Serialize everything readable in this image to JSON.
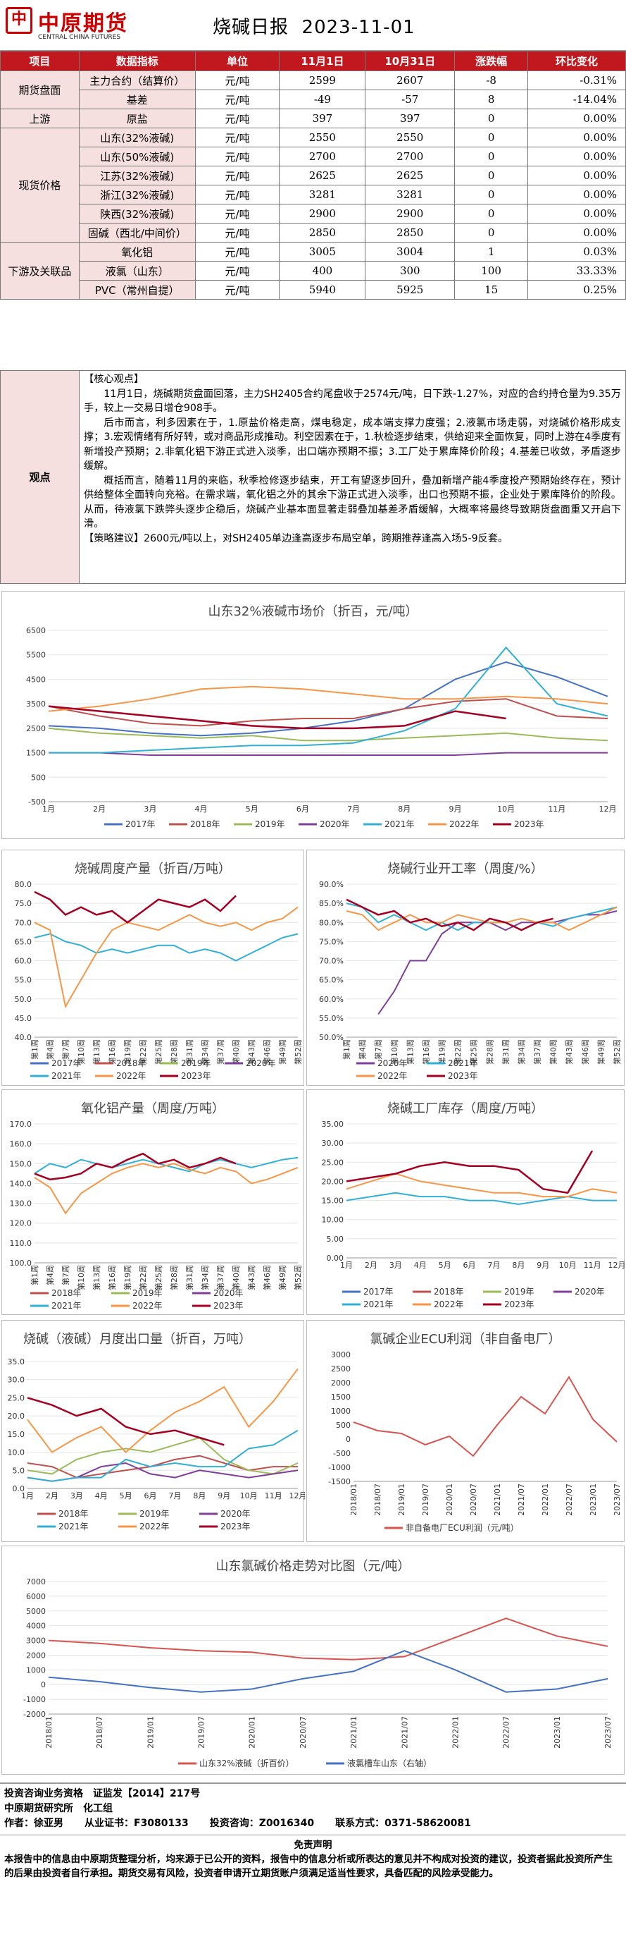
{
  "header": {
    "logo_cn": "中原期货",
    "logo_en": "CENTRAL CHINA FUTURES",
    "title": "烧碱日报",
    "date": "2023-11-01"
  },
  "table": {
    "headers": [
      "项目",
      "数据指标",
      "单位",
      "11月1日",
      "10月31日",
      "涨跌幅",
      "环比变化"
    ],
    "rows": [
      {
        "cat": "期货盘面",
        "ind": "主力合约（结算价）",
        "unit": "元/吨",
        "d1": "2599",
        "d0": "2607",
        "chg": "-8",
        "pct": "-0.31%"
      },
      {
        "cat": "",
        "ind": "基差",
        "unit": "元/吨",
        "d1": "-49",
        "d0": "-57",
        "chg": "8",
        "pct": "-14.04%"
      },
      {
        "cat": "上游",
        "ind": "原盐",
        "unit": "元/吨",
        "d1": "397",
        "d0": "397",
        "chg": "0",
        "pct": "0.00%"
      },
      {
        "cat": "现货价格",
        "ind": "山东(32%液碱)",
        "unit": "元/吨",
        "d1": "2550",
        "d0": "2550",
        "chg": "0",
        "pct": "0.00%"
      },
      {
        "cat": "",
        "ind": "山东(50%液碱)",
        "unit": "元/吨",
        "d1": "2700",
        "d0": "2700",
        "chg": "0",
        "pct": "0.00%"
      },
      {
        "cat": "",
        "ind": "江苏(32%液碱)",
        "unit": "元/吨",
        "d1": "2625",
        "d0": "2625",
        "chg": "0",
        "pct": "0.00%"
      },
      {
        "cat": "",
        "ind": "浙江(32%液碱)",
        "unit": "元/吨",
        "d1": "3281",
        "d0": "3281",
        "chg": "0",
        "pct": "0.00%"
      },
      {
        "cat": "",
        "ind": "陕西(32%液碱)",
        "unit": "元/吨",
        "d1": "2900",
        "d0": "2900",
        "chg": "0",
        "pct": "0.00%"
      },
      {
        "cat": "",
        "ind": "固碱（西北/中间价）",
        "unit": "元/吨",
        "d1": "2850",
        "d0": "2850",
        "chg": "0",
        "pct": "0.00%"
      },
      {
        "cat": "下游及关联品",
        "ind": "氧化铝",
        "unit": "元/吨",
        "d1": "3005",
        "d0": "3004",
        "chg": "1",
        "pct": "0.03%"
      },
      {
        "cat": "",
        "ind": "液氯（山东）",
        "unit": "元/吨",
        "d1": "400",
        "d0": "300",
        "chg": "100",
        "pct": "33.33%"
      },
      {
        "cat": "",
        "ind": "PVC（常州自提）",
        "unit": "元/吨",
        "d1": "5940",
        "d0": "5925",
        "chg": "15",
        "pct": "0.25%"
      }
    ]
  },
  "view": {
    "label": "观点",
    "head": "【核心观点】",
    "p1": "11月1日，烧碱期货盘面回落，主力SH2405合约尾盘收于2574元/吨，日下跌-1.27%，对应的合约持仓量为9.35万手，较上一交易日增仓908手。",
    "p2": "后市而言，利多因素在于，1.原盐价格走高，煤电稳定，成本端支撑力度强；2.液氯市场走弱，对烧碱价格形成支撑；3.宏观情绪有所好转，或对商品形成推动。利空因素在于，1.秋检逐步结束，供给迎来全面恢复，同时上游在4季度有新增投产预期；2.非氧化铝下游正式进入淡季，出口端亦预期不振；3.工厂处于累库降价阶段；4.基差已收敛，矛盾逐步缓解。",
    "p3": "概括而言，随着11月的来临，秋季检修逐步结束，开工有望逐步回升，叠加新增产能4季度投产预期始终存在，预计供给整体全面转向充裕。在需求端，氧化铝之外的其余下游正式进入淡季，出口也预期不振，企业处于累库降价的阶段。从而，待液氯下跌弊头逐步企稳后，烧碱产业基本面显著走弱叠加基差矛盾缓解，大概率将最终导致期货盘面重又开启下滑。",
    "p4": "【策略建议】2600元/吨以上，对SH2405单边逢高逐步布局空单，跨期推荐逢高入场5-9反套。"
  },
  "colors": {
    "red": "#c0181e",
    "pink": "#f6e0df",
    "y2017": "#4472c4",
    "y2018": "#c0504d",
    "y2019": "#9bbb59",
    "y2020": "#7f3f98",
    "y2021": "#31b0d5",
    "y2022": "#f79646",
    "y2023": "#a50021"
  },
  "chart_data": [
    {
      "type": "line",
      "title": "山东32%液碱市场价（折百，元/吨）",
      "x": [
        "1月",
        "2月",
        "3月",
        "4月",
        "5月",
        "6月",
        "7月",
        "8月",
        "9月",
        "10月",
        "11月",
        "12月"
      ],
      "ylim": [
        -500,
        6500
      ],
      "yticks": [
        "6500",
        "5500",
        "4500",
        "3500",
        "2500",
        "1500",
        "500",
        "-500"
      ],
      "series": [
        {
          "name": "2017年",
          "values": [
            2600,
            2500,
            2300,
            2200,
            2300,
            2500,
            2800,
            3300,
            4500,
            5200,
            4600,
            3800
          ]
        },
        {
          "name": "2018年",
          "values": [
            3400,
            3000,
            2700,
            2600,
            2800,
            2900,
            2900,
            3300,
            3600,
            3700,
            3000,
            2900
          ]
        },
        {
          "name": "2019年",
          "values": [
            2500,
            2300,
            2200,
            2100,
            2200,
            2000,
            2000,
            2100,
            2200,
            2300,
            2100,
            2000
          ]
        },
        {
          "name": "2020年",
          "values": [
            1500,
            1500,
            1400,
            1400,
            1400,
            1400,
            1400,
            1400,
            1400,
            1500,
            1500,
            1500
          ]
        },
        {
          "name": "2021年",
          "values": [
            1500,
            1500,
            1600,
            1700,
            1800,
            1800,
            1900,
            2400,
            3300,
            5800,
            3500,
            3000
          ]
        },
        {
          "name": "2022年",
          "values": [
            3200,
            3400,
            3700,
            4100,
            4200,
            4100,
            3900,
            3700,
            3700,
            3800,
            3700,
            3500
          ]
        },
        {
          "name": "2023年",
          "values": [
            3400,
            3200,
            3000,
            2800,
            2600,
            2500,
            2500,
            2600,
            3200,
            2900,
            null,
            null
          ]
        }
      ]
    },
    {
      "type": "line",
      "title": "烧碱周度产量（折百/万吨）",
      "x": [
        "第1周",
        "第4周",
        "第7周",
        "第10周",
        "第13周",
        "第16周",
        "第19周",
        "第22周",
        "第25周",
        "第28周",
        "第31周",
        "第34周",
        "第37周",
        "第40周",
        "第43周",
        "第46周",
        "第49周",
        "第52周"
      ],
      "ylim": [
        40,
        80
      ],
      "yticks": [
        "80.0",
        "75.0",
        "70.0",
        "65.0",
        "60.0",
        "55.0",
        "50.0",
        "45.0",
        "40.0"
      ],
      "series": [
        {
          "name": "2017年",
          "values": []
        },
        {
          "name": "2018年",
          "values": []
        },
        {
          "name": "2019年",
          "values": []
        },
        {
          "name": "2020年",
          "values": []
        },
        {
          "name": "2021年",
          "values": [
            66,
            67,
            65,
            64,
            62,
            63,
            62,
            63,
            64,
            64,
            62,
            63,
            62,
            60,
            62,
            64,
            66,
            67
          ]
        },
        {
          "name": "2022年",
          "values": [
            70,
            68,
            48,
            55,
            62,
            68,
            70,
            69,
            68,
            70,
            72,
            70,
            69,
            70,
            68,
            70,
            71,
            74
          ]
        },
        {
          "name": "2023年",
          "values": [
            78,
            76,
            72,
            74,
            72,
            73,
            70,
            73,
            76,
            75,
            74,
            76,
            73,
            77,
            null,
            null,
            null,
            null
          ]
        }
      ]
    },
    {
      "type": "line",
      "title": "烧碱行业开工率（周度/%）",
      "x": [
        "第1周",
        "第4周",
        "第7周",
        "第10周",
        "第13周",
        "第16周",
        "第19周",
        "第22周",
        "第25周",
        "第28周",
        "第31周",
        "第34周",
        "第37周",
        "第40周",
        "第43周",
        "第46周",
        "第49周",
        "第52周"
      ],
      "ylim": [
        50,
        90
      ],
      "yticks": [
        "90.0%",
        "85.0%",
        "80.0%",
        "75.0%",
        "70.0%",
        "65.0%",
        "60.0%",
        "55.0%",
        "50.0%"
      ],
      "series": [
        {
          "name": "2020年",
          "values": [
            null,
            null,
            56,
            62,
            70,
            70,
            77,
            80,
            80,
            80,
            78,
            80,
            80,
            80,
            81,
            82,
            82,
            83
          ]
        },
        {
          "name": "2021年",
          "values": [
            85,
            84,
            80,
            82,
            80,
            78,
            80,
            78,
            80,
            80,
            80,
            78,
            80,
            79,
            81,
            82,
            83,
            84
          ]
        },
        {
          "name": "2022年",
          "values": [
            83,
            82,
            78,
            80,
            82,
            80,
            80,
            82,
            81,
            80,
            80,
            81,
            80,
            80,
            78,
            80,
            82,
            84
          ]
        },
        {
          "name": "2023年",
          "values": [
            86,
            84,
            82,
            83,
            80,
            81,
            79,
            80,
            78,
            81,
            80,
            78,
            80,
            81,
            null,
            null,
            null,
            null
          ]
        }
      ]
    },
    {
      "type": "line",
      "title": "氧化铝产量（周度/万吨）",
      "x": [
        "第1周",
        "第4周",
        "第7周",
        "第10周",
        "第13周",
        "第16周",
        "第19周",
        "第22周",
        "第25周",
        "第28周",
        "第31周",
        "第34周",
        "第37周",
        "第40周",
        "第43周",
        "第46周",
        "第49周",
        "第52周"
      ],
      "ylim": [
        100,
        170
      ],
      "yticks": [
        "170.0",
        "160.0",
        "150.0",
        "140.0",
        "130.0",
        "120.0",
        "110.0",
        "100.0"
      ],
      "series": [
        {
          "name": "2018年",
          "values": []
        },
        {
          "name": "2019年",
          "values": []
        },
        {
          "name": "2020年",
          "values": []
        },
        {
          "name": "2021年",
          "values": [
            145,
            150,
            148,
            152,
            150,
            148,
            150,
            152,
            150,
            148,
            146,
            150,
            152,
            150,
            148,
            150,
            152,
            153
          ]
        },
        {
          "name": "2022年",
          "values": [
            143,
            138,
            125,
            135,
            140,
            145,
            148,
            150,
            148,
            150,
            147,
            145,
            148,
            146,
            140,
            142,
            145,
            148
          ]
        },
        {
          "name": "2023年",
          "values": [
            145,
            142,
            143,
            145,
            150,
            148,
            152,
            155,
            150,
            152,
            148,
            150,
            153,
            150,
            null,
            null,
            null,
            null
          ]
        }
      ]
    },
    {
      "type": "line",
      "title": "烧碱工厂库存（周度/万吨）",
      "x": [
        "1月",
        "2月",
        "3月",
        "4月",
        "5月",
        "6月",
        "7月",
        "8月",
        "9月",
        "10月",
        "11月",
        "12月"
      ],
      "ylim": [
        0,
        35
      ],
      "yticks": [
        "35.00",
        "30.00",
        "25.00",
        "20.00",
        "15.00",
        "10.00",
        "5.00",
        "0.00"
      ],
      "series": [
        {
          "name": "2017年",
          "values": []
        },
        {
          "name": "2018年",
          "values": []
        },
        {
          "name": "2019年",
          "values": []
        },
        {
          "name": "2020年",
          "values": []
        },
        {
          "name": "2021年",
          "values": [
            15,
            16,
            17,
            16,
            16,
            15,
            15,
            14,
            15,
            16,
            15,
            15
          ]
        },
        {
          "name": "2022年",
          "values": [
            18,
            20,
            22,
            20,
            19,
            18,
            17,
            17,
            16,
            16,
            18,
            17
          ]
        },
        {
          "name": "2023年",
          "values": [
            20,
            21,
            22,
            24,
            25,
            24,
            24,
            23,
            18,
            17,
            28,
            null
          ]
        }
      ]
    },
    {
      "type": "line",
      "title": "烧碱（液碱）月度出口量（折百，万吨）",
      "x": [
        "1月",
        "2月",
        "3月",
        "4月",
        "5月",
        "6月",
        "7月",
        "8月",
        "9月",
        "10月",
        "11月",
        "12月"
      ],
      "ylim": [
        0,
        35
      ],
      "yticks": [
        "35.0",
        "30.0",
        "25.0",
        "20.0",
        "15.0",
        "10.0",
        "5.0",
        "0.0"
      ],
      "series": [
        {
          "name": "2018年",
          "values": [
            7,
            6,
            3,
            4,
            5,
            6,
            8,
            9,
            7,
            5,
            6,
            6
          ]
        },
        {
          "name": "2019年",
          "values": [
            5,
            4,
            8,
            10,
            11,
            10,
            12,
            14,
            8,
            5,
            4,
            7
          ]
        },
        {
          "name": "2020年",
          "values": [
            3,
            2,
            3,
            6,
            7,
            4,
            3,
            5,
            4,
            3,
            4,
            5
          ]
        },
        {
          "name": "2021年",
          "values": [
            3,
            2,
            3,
            3,
            8,
            6,
            7,
            6,
            6,
            11,
            12,
            16
          ]
        },
        {
          "name": "2022年",
          "values": [
            19,
            10,
            14,
            17,
            10,
            16,
            21,
            24,
            28,
            17,
            24,
            33
          ]
        },
        {
          "name": "2023年",
          "values": [
            25,
            23,
            20,
            22,
            17,
            15,
            16,
            14,
            12,
            null,
            null,
            null
          ]
        }
      ]
    },
    {
      "type": "line",
      "title": "氯碱企业ECU利润（非自备电厂）",
      "x": [
        "2018/01",
        "2018/07",
        "2019/01",
        "2019/07",
        "2020/01",
        "2020/07",
        "2021/01",
        "2021/07",
        "2022/01",
        "2022/07",
        "2023/01",
        "2023/07"
      ],
      "ylim": [
        -1500,
        3000
      ],
      "yticks": [
        "3000",
        "2500",
        "2000",
        "1500",
        "1000",
        "500",
        "0",
        "-500",
        "-1000",
        "-1500"
      ],
      "series": [
        {
          "name": "非自备电厂ECU利润（元/吨）",
          "values": [
            600,
            300,
            200,
            -200,
            100,
            -600,
            500,
            1500,
            900,
            2200,
            700,
            -100
          ]
        }
      ]
    },
    {
      "type": "line",
      "title": "山东氯碱价格走势对比图（元/吨）",
      "x": [
        "2018/01",
        "2018/07",
        "2019/01",
        "2019/07",
        "2020/01",
        "2020/07",
        "2021/01",
        "2021/07",
        "2022/01",
        "2022/07",
        "2023/01",
        "2023/07"
      ],
      "ylim": [
        -2000,
        7000
      ],
      "yticks": [
        "7000",
        "6000",
        "5000",
        "4000",
        "3000",
        "2000",
        "1000",
        "0",
        "-1000",
        "-2000"
      ],
      "series": [
        {
          "name": "山东32%液碱（折百价）",
          "values": [
            3000,
            2800,
            2500,
            2300,
            2200,
            1800,
            1700,
            1900,
            3200,
            4500,
            3300,
            2600
          ]
        },
        {
          "name": "液氯槽车山东（右轴）",
          "values": [
            500,
            200,
            -200,
            -500,
            -300,
            400,
            900,
            2300,
            1000,
            -500,
            -300,
            400
          ]
        }
      ]
    }
  ],
  "legends": {
    "c1": [
      "2017年",
      "2018年",
      "2019年",
      "2020年",
      "2021年",
      "2022年",
      "2023年"
    ],
    "c2": [
      "2017年",
      "2018年",
      "2019年",
      "2020年",
      "2021年",
      "2022年",
      "2023年"
    ],
    "c3": [
      "2020年",
      "2021年",
      "2022年",
      "2023年"
    ],
    "c4": [
      "2018年",
      "2019年",
      "2020年",
      "2021年",
      "2022年",
      "2023年"
    ],
    "c5": [
      "2017年",
      "2018年",
      "2019年",
      "2020年",
      "2021年",
      "2022年",
      "2023年"
    ],
    "c6": [
      "2018年",
      "2019年",
      "2020年",
      "2021年",
      "2022年",
      "2023年"
    ],
    "c7": [
      "非自备电厂ECU利润（元/吨）"
    ],
    "c8": [
      "山东32%液碱（折百价）",
      "液氯槽车山东（右轴）"
    ]
  },
  "footer": {
    "l1": "投资咨询业务资格　证监发【2014】217号",
    "l2": "中原期货研究所　化工组",
    "l3a": "作者：徐亚男",
    "l3b": "从业证书：F3080133",
    "l3c": "投资咨询：Z0016340",
    "l3d": "联系方式：0371-58620081",
    "disc_title": "免责声明",
    "disc": "本报告中的信息由中原期货整理分析，均来源于已公开的资料，报告中的信息分析或所表达的意见并不构成对投资的建议，投资者据此投资所产生的后果由投资者自行承担。期货交易有风险，投资者申请开立期货账户须满足适当性要求，具备匹配的风险承受能力。"
  }
}
